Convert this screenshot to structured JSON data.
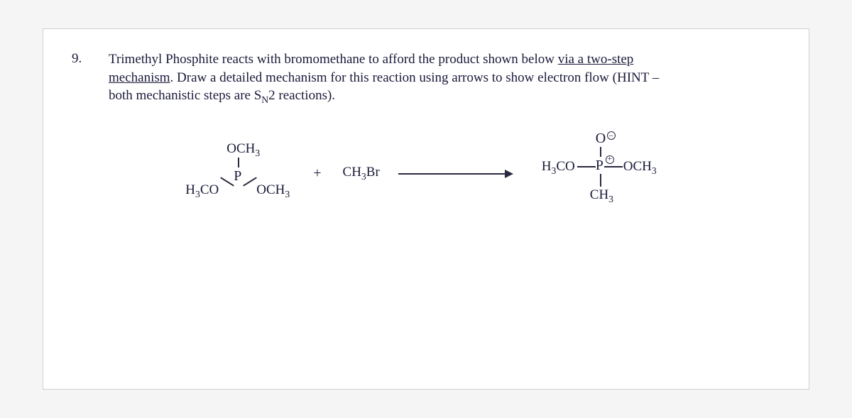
{
  "question": {
    "number": "9.",
    "line1_pre": "Trimethyl Phosphite reacts with bromomethane to afford the product shown below ",
    "line1_underlined": "via a two-step",
    "line2_underlined": "mechanism",
    "line2_rest": ".  Draw a detailed mechanism for this reaction using arrows to show electron flow (HINT –",
    "line3_pre": "both mechanistic steps are S",
    "line3_sub": "N",
    "line3_post": "2 reactions)."
  },
  "reaction": {
    "reactant1": {
      "top": "OCH",
      "top_sub": "3",
      "center": "P",
      "left_pre": "H",
      "left_sub1": "3",
      "left_mid": "CO",
      "right_pre": "OCH",
      "right_sub1": "3"
    },
    "plus": "+",
    "reactant2": {
      "text_pre": "CH",
      "text_sub": "3",
      "text_post": "Br"
    },
    "product": {
      "o": "O",
      "minus": "−",
      "center": "P",
      "plus": "+",
      "left_pre": "H",
      "left_sub1": "3",
      "left_mid": "CO",
      "right_pre": "OCH",
      "right_sub1": "3",
      "bot_pre": "CH",
      "bot_sub": "3"
    }
  },
  "style": {
    "text_color": "#1a1a3a",
    "line_color": "#2a2a40",
    "background": "#ffffff",
    "font_family": "Times New Roman",
    "font_size_body": 19
  }
}
